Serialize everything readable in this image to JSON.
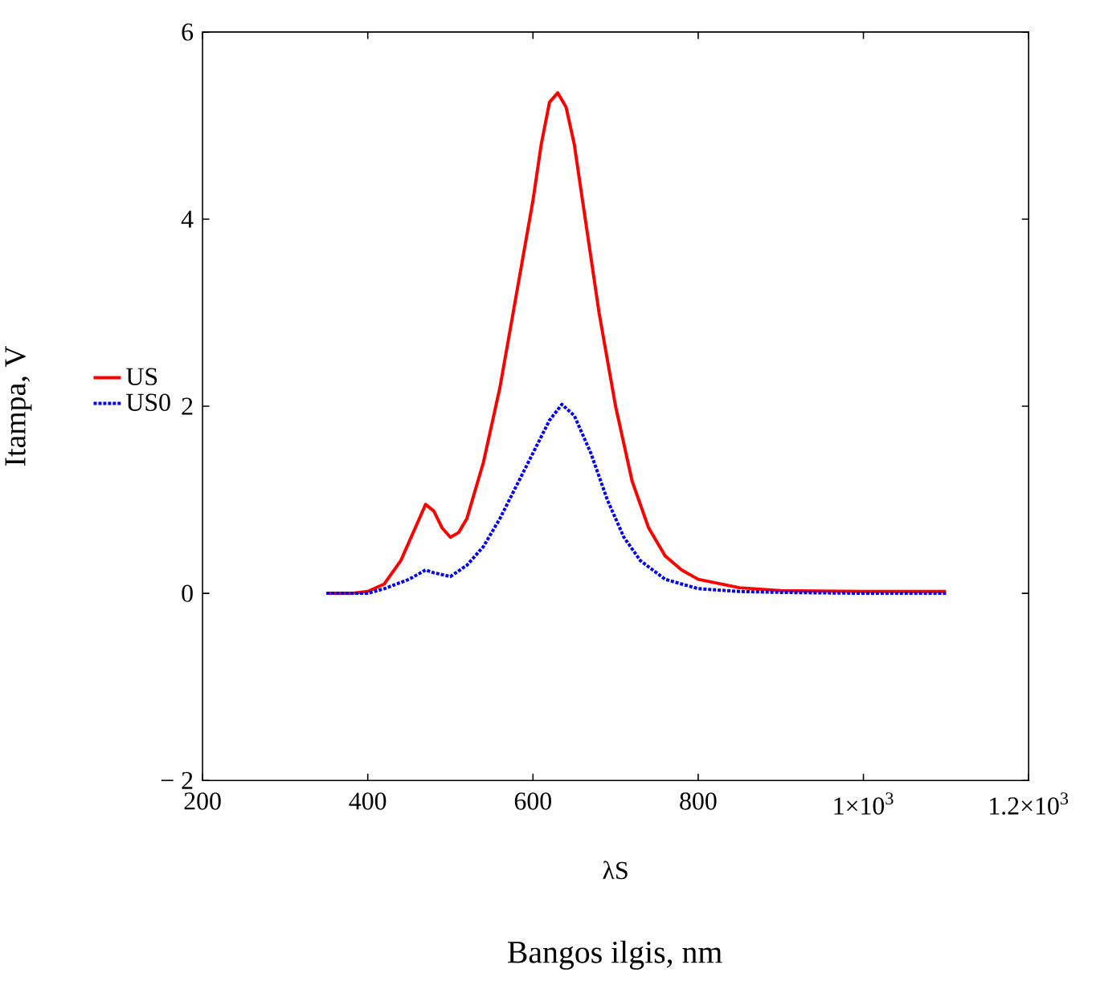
{
  "chart_data": {
    "type": "line",
    "xlabel": "λS",
    "ylabel": "Itampa, V",
    "annotations": [
      "Bangos ilgis, nm"
    ],
    "xlim": [
      200,
      1200
    ],
    "ylim": [
      -2,
      6
    ],
    "xticks": [
      200,
      400,
      600,
      800,
      {
        "value": 1000,
        "label": "1×10$^{3}$"
      },
      {
        "value": 1200,
        "label": "1.2×10$^{3}$"
      }
    ],
    "yticks": [
      {
        "value": -2,
        "label": "− 2"
      },
      0,
      2,
      4,
      6
    ],
    "legend": "left",
    "series": [
      {
        "name": "US",
        "color": "#ff0000",
        "line_style": "solid",
        "x": [
          350,
          380,
          400,
          420,
          440,
          460,
          470,
          480,
          490,
          500,
          510,
          520,
          540,
          560,
          580,
          600,
          610,
          620,
          630,
          640,
          650,
          660,
          670,
          680,
          690,
          700,
          720,
          740,
          760,
          780,
          800,
          850,
          900,
          1000,
          1100
        ],
        "values": [
          0,
          0,
          0.02,
          0.1,
          0.35,
          0.75,
          0.95,
          0.88,
          0.7,
          0.6,
          0.65,
          0.8,
          1.4,
          2.2,
          3.2,
          4.2,
          4.8,
          5.25,
          5.35,
          5.2,
          4.8,
          4.2,
          3.6,
          3.0,
          2.5,
          2.0,
          1.2,
          0.7,
          0.4,
          0.25,
          0.15,
          0.06,
          0.03,
          0.02,
          0.02
        ]
      },
      {
        "name": "US0",
        "color": "#0000ff",
        "line_style": "dotted",
        "x": [
          350,
          400,
          420,
          450,
          470,
          480,
          500,
          520,
          540,
          560,
          580,
          600,
          620,
          635,
          650,
          670,
          690,
          710,
          730,
          760,
          800,
          850,
          900,
          1000,
          1100
        ],
        "values": [
          0,
          0,
          0.05,
          0.15,
          0.25,
          0.22,
          0.18,
          0.3,
          0.5,
          0.8,
          1.15,
          1.5,
          1.85,
          2.02,
          1.9,
          1.5,
          1.0,
          0.6,
          0.35,
          0.15,
          0.05,
          0.02,
          0.01,
          0,
          0
        ]
      }
    ]
  }
}
